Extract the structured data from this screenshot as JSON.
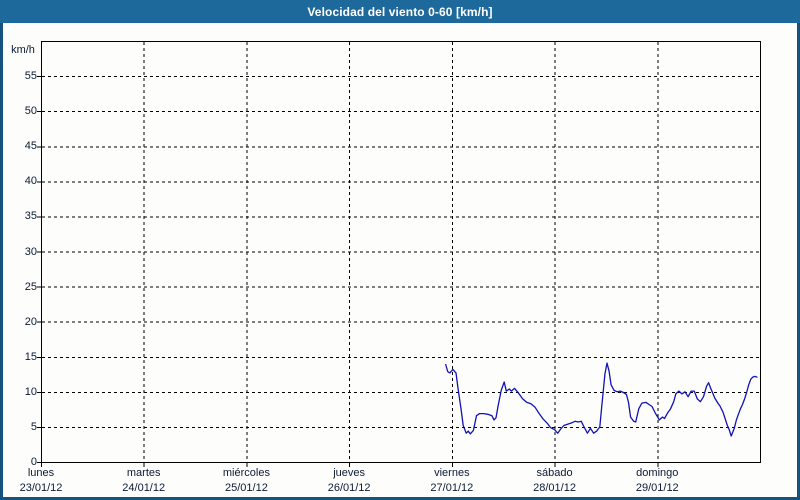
{
  "window": {
    "title": "Velocidad del viento 0-60 [km/h]"
  },
  "colors": {
    "titlebar_bg": "#1e699c",
    "window_border": "#15527d",
    "titlebar_text": "#ffffff",
    "plot_bg": "#fdfdfc",
    "plot_border": "#000000",
    "grid": "#000000",
    "label_text": "#0b1a33",
    "series_line": "#1212b5"
  },
  "chart_data": {
    "type": "line",
    "title": "Velocidad del viento 0-60 [km/h]",
    "ylabel": "km/h",
    "xlabel": "",
    "ylim": [
      0,
      60
    ],
    "ytick_step": 5,
    "yticks": [
      0,
      5,
      10,
      15,
      20,
      25,
      30,
      35,
      40,
      45,
      50,
      55
    ],
    "grid": "dashed",
    "legend_position": "none",
    "xlim_days": [
      0,
      7
    ],
    "x_days": [
      {
        "name": "lunes",
        "date": "23/01/12"
      },
      {
        "name": "martes",
        "date": "24/01/12"
      },
      {
        "name": "miércoles",
        "date": "25/01/12"
      },
      {
        "name": "jueves",
        "date": "26/01/12"
      },
      {
        "name": "viernes",
        "date": "27/01/12"
      },
      {
        "name": "sábado",
        "date": "28/01/12"
      },
      {
        "name": "domingo",
        "date": "29/01/12"
      }
    ],
    "series": [
      {
        "name": "velocidad del viento",
        "unit": "km/h",
        "x_unit": "days since lunes 23/01/12 00:00",
        "points": [
          [
            3.94,
            13.9
          ],
          [
            3.96,
            12.9
          ],
          [
            3.98,
            12.7
          ],
          [
            4.01,
            13.2
          ],
          [
            4.04,
            12.7
          ],
          [
            4.06,
            10.5
          ],
          [
            4.09,
            7.5
          ],
          [
            4.11,
            5.2
          ],
          [
            4.14,
            4.1
          ],
          [
            4.16,
            4.4
          ],
          [
            4.18,
            4.0
          ],
          [
            4.21,
            4.5
          ],
          [
            4.24,
            6.6
          ],
          [
            4.27,
            6.9
          ],
          [
            4.31,
            6.9
          ],
          [
            4.35,
            6.8
          ],
          [
            4.39,
            6.6
          ],
          [
            4.41,
            6.0
          ],
          [
            4.43,
            6.3
          ],
          [
            4.45,
            8.0
          ],
          [
            4.48,
            10.2
          ],
          [
            4.51,
            11.4
          ],
          [
            4.53,
            10.1
          ],
          [
            4.56,
            10.4
          ],
          [
            4.58,
            10.1
          ],
          [
            4.61,
            10.5
          ],
          [
            4.65,
            9.8
          ],
          [
            4.69,
            9.0
          ],
          [
            4.73,
            8.5
          ],
          [
            4.77,
            8.3
          ],
          [
            4.81,
            7.8
          ],
          [
            4.85,
            6.9
          ],
          [
            4.89,
            6.1
          ],
          [
            4.93,
            5.5
          ],
          [
            4.96,
            4.9
          ],
          [
            5.0,
            4.6
          ],
          [
            5.03,
            4.1
          ],
          [
            5.06,
            4.7
          ],
          [
            5.09,
            5.2
          ],
          [
            5.13,
            5.4
          ],
          [
            5.17,
            5.6
          ],
          [
            5.2,
            5.8
          ],
          [
            5.23,
            5.7
          ],
          [
            5.26,
            5.8
          ],
          [
            5.28,
            5.2
          ],
          [
            5.32,
            4.1
          ],
          [
            5.35,
            4.8
          ],
          [
            5.38,
            4.1
          ],
          [
            5.41,
            4.4
          ],
          [
            5.44,
            5.0
          ],
          [
            5.46,
            8.0
          ],
          [
            5.49,
            12.5
          ],
          [
            5.51,
            14.1
          ],
          [
            5.53,
            13.0
          ],
          [
            5.55,
            11.0
          ],
          [
            5.58,
            10.2
          ],
          [
            5.61,
            10.0
          ],
          [
            5.64,
            10.1
          ],
          [
            5.67,
            9.9
          ],
          [
            5.7,
            9.6
          ],
          [
            5.72,
            8.5
          ],
          [
            5.74,
            6.4
          ],
          [
            5.77,
            5.8
          ],
          [
            5.79,
            5.7
          ],
          [
            5.82,
            7.6
          ],
          [
            5.85,
            8.4
          ],
          [
            5.89,
            8.5
          ],
          [
            5.92,
            8.2
          ],
          [
            5.95,
            7.9
          ],
          [
            5.98,
            7.0
          ],
          [
            6.0,
            6.5
          ],
          [
            6.02,
            6.0
          ],
          [
            6.05,
            6.4
          ],
          [
            6.07,
            6.2
          ],
          [
            6.1,
            7.0
          ],
          [
            6.13,
            7.6
          ],
          [
            6.16,
            8.6
          ],
          [
            6.18,
            9.7
          ],
          [
            6.21,
            10.1
          ],
          [
            6.24,
            9.7
          ],
          [
            6.27,
            10.0
          ],
          [
            6.3,
            9.3
          ],
          [
            6.33,
            10.1
          ],
          [
            6.36,
            10.1
          ],
          [
            6.39,
            9.0
          ],
          [
            6.42,
            8.6
          ],
          [
            6.45,
            9.3
          ],
          [
            6.48,
            10.8
          ],
          [
            6.5,
            11.3
          ],
          [
            6.52,
            10.5
          ],
          [
            6.54,
            9.8
          ],
          [
            6.56,
            9.1
          ],
          [
            6.59,
            8.4
          ],
          [
            6.61,
            8.0
          ],
          [
            6.64,
            7.1
          ],
          [
            6.66,
            6.2
          ],
          [
            6.68,
            5.3
          ],
          [
            6.7,
            4.6
          ],
          [
            6.72,
            3.7
          ],
          [
            6.75,
            4.8
          ],
          [
            6.77,
            6.0
          ],
          [
            6.79,
            6.8
          ],
          [
            6.81,
            7.6
          ],
          [
            6.83,
            8.2
          ],
          [
            6.85,
            9.0
          ],
          [
            6.87,
            9.9
          ],
          [
            6.89,
            11.0
          ],
          [
            6.91,
            11.8
          ],
          [
            6.93,
            12.1
          ],
          [
            6.95,
            12.2
          ],
          [
            6.97,
            12.1
          ]
        ]
      }
    ]
  }
}
